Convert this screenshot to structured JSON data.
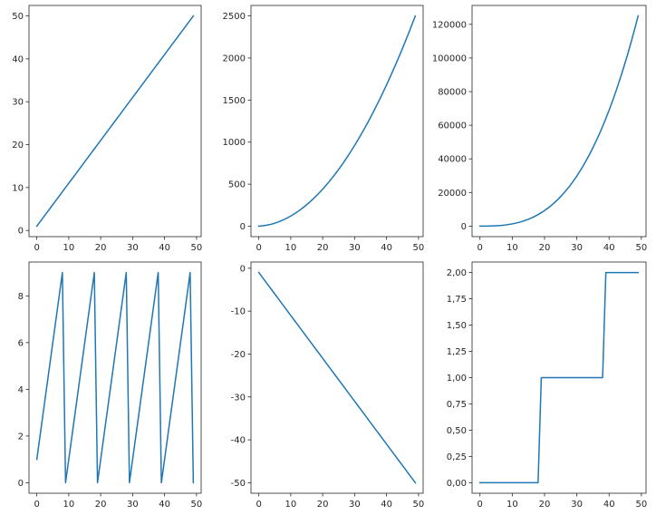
{
  "colors": {
    "series": "#1f77b4"
  },
  "chart_data": [
    {
      "type": "line",
      "x": [
        0,
        1,
        2,
        3,
        4,
        5,
        6,
        7,
        8,
        9,
        10,
        11,
        12,
        13,
        14,
        15,
        16,
        17,
        18,
        19,
        20,
        21,
        22,
        23,
        24,
        25,
        26,
        27,
        28,
        29,
        30,
        31,
        32,
        33,
        34,
        35,
        36,
        37,
        38,
        39,
        40,
        41,
        42,
        43,
        44,
        45,
        46,
        47,
        48,
        49
      ],
      "y": [
        1,
        2,
        3,
        4,
        5,
        6,
        7,
        8,
        9,
        10,
        11,
        12,
        13,
        14,
        15,
        16,
        17,
        18,
        19,
        20,
        21,
        22,
        23,
        24,
        25,
        26,
        27,
        28,
        29,
        30,
        31,
        32,
        33,
        34,
        35,
        36,
        37,
        38,
        39,
        40,
        41,
        42,
        43,
        44,
        45,
        46,
        47,
        48,
        49,
        50
      ],
      "xlim": [
        -2.45,
        51.45
      ],
      "ylim": [
        -1.45,
        52.45
      ],
      "xticks": [
        0,
        10,
        20,
        30,
        40,
        50
      ],
      "xtick_labels": [
        "0",
        "10",
        "20",
        "30",
        "40",
        "50"
      ],
      "yticks": [
        0,
        10,
        20,
        30,
        40,
        50
      ],
      "ytick_labels": [
        "0",
        "10",
        "20",
        "30",
        "40",
        "50"
      ],
      "grid": false
    },
    {
      "type": "line",
      "x": [
        0,
        1,
        2,
        3,
        4,
        5,
        6,
        7,
        8,
        9,
        10,
        11,
        12,
        13,
        14,
        15,
        16,
        17,
        18,
        19,
        20,
        21,
        22,
        23,
        24,
        25,
        26,
        27,
        28,
        29,
        30,
        31,
        32,
        33,
        34,
        35,
        36,
        37,
        38,
        39,
        40,
        41,
        42,
        43,
        44,
        45,
        46,
        47,
        48,
        49
      ],
      "y": [
        1,
        4,
        9,
        16,
        25,
        36,
        49,
        64,
        81,
        100,
        121,
        144,
        169,
        196,
        225,
        256,
        289,
        324,
        361,
        400,
        441,
        484,
        529,
        576,
        625,
        676,
        729,
        784,
        841,
        900,
        961,
        1024,
        1089,
        1156,
        1225,
        1296,
        1369,
        1444,
        1521,
        1600,
        1681,
        1764,
        1849,
        1936,
        2025,
        2116,
        2209,
        2304,
        2401,
        2500
      ],
      "xlim": [
        -2.45,
        51.45
      ],
      "ylim": [
        -123.95,
        2624.95
      ],
      "xticks": [
        0,
        10,
        20,
        30,
        40,
        50
      ],
      "xtick_labels": [
        "0",
        "10",
        "20",
        "30",
        "40",
        "50"
      ],
      "yticks": [
        0,
        500,
        1000,
        1500,
        2000,
        2500
      ],
      "ytick_labels": [
        "0",
        "500",
        "1000",
        "1500",
        "2000",
        "2500"
      ],
      "grid": false
    },
    {
      "type": "line",
      "x": [
        0,
        1,
        2,
        3,
        4,
        5,
        6,
        7,
        8,
        9,
        10,
        11,
        12,
        13,
        14,
        15,
        16,
        17,
        18,
        19,
        20,
        21,
        22,
        23,
        24,
        25,
        26,
        27,
        28,
        29,
        30,
        31,
        32,
        33,
        34,
        35,
        36,
        37,
        38,
        39,
        40,
        41,
        42,
        43,
        44,
        45,
        46,
        47,
        48,
        49
      ],
      "y": [
        1,
        8,
        27,
        64,
        125,
        216,
        343,
        512,
        729,
        1000,
        1331,
        1728,
        2197,
        2744,
        3375,
        4096,
        4913,
        5832,
        6859,
        8000,
        9261,
        10648,
        12167,
        13824,
        15625,
        17576,
        19683,
        21952,
        24389,
        27000,
        29791,
        32768,
        35937,
        39304,
        42875,
        46656,
        50653,
        54872,
        59319,
        64000,
        68921,
        74088,
        79507,
        85184,
        91125,
        97336,
        103823,
        110592,
        117649,
        125000
      ],
      "xlim": [
        -2.45,
        51.45
      ],
      "ylim": [
        -6249.95,
        131250.95
      ],
      "xticks": [
        0,
        10,
        20,
        30,
        40,
        50
      ],
      "xtick_labels": [
        "0",
        "10",
        "20",
        "30",
        "40",
        "50"
      ],
      "yticks": [
        0,
        20000,
        40000,
        60000,
        80000,
        100000,
        120000
      ],
      "ytick_labels": [
        "0",
        "20000",
        "40000",
        "60000",
        "80000",
        "100000",
        "120000"
      ],
      "grid": false
    },
    {
      "type": "line",
      "x": [
        0,
        1,
        2,
        3,
        4,
        5,
        6,
        7,
        8,
        9,
        10,
        11,
        12,
        13,
        14,
        15,
        16,
        17,
        18,
        19,
        20,
        21,
        22,
        23,
        24,
        25,
        26,
        27,
        28,
        29,
        30,
        31,
        32,
        33,
        34,
        35,
        36,
        37,
        38,
        39,
        40,
        41,
        42,
        43,
        44,
        45,
        46,
        47,
        48,
        49
      ],
      "y": [
        1,
        2,
        3,
        4,
        5,
        6,
        7,
        8,
        9,
        0,
        1,
        2,
        3,
        4,
        5,
        6,
        7,
        8,
        9,
        0,
        1,
        2,
        3,
        4,
        5,
        6,
        7,
        8,
        9,
        0,
        1,
        2,
        3,
        4,
        5,
        6,
        7,
        8,
        9,
        0,
        1,
        2,
        3,
        4,
        5,
        6,
        7,
        8,
        9,
        0
      ],
      "xlim": [
        -2.45,
        51.45
      ],
      "ylim": [
        -0.45,
        9.45
      ],
      "xticks": [
        0,
        10,
        20,
        30,
        40,
        50
      ],
      "xtick_labels": [
        "0",
        "10",
        "20",
        "30",
        "40",
        "50"
      ],
      "yticks": [
        0,
        2,
        4,
        6,
        8
      ],
      "ytick_labels": [
        "0",
        "2",
        "4",
        "6",
        "8"
      ],
      "grid": false
    },
    {
      "type": "line",
      "x": [
        0,
        1,
        2,
        3,
        4,
        5,
        6,
        7,
        8,
        9,
        10,
        11,
        12,
        13,
        14,
        15,
        16,
        17,
        18,
        19,
        20,
        21,
        22,
        23,
        24,
        25,
        26,
        27,
        28,
        29,
        30,
        31,
        32,
        33,
        34,
        35,
        36,
        37,
        38,
        39,
        40,
        41,
        42,
        43,
        44,
        45,
        46,
        47,
        48,
        49
      ],
      "y": [
        -1,
        -2,
        -3,
        -4,
        -5,
        -6,
        -7,
        -8,
        -9,
        -10,
        -11,
        -12,
        -13,
        -14,
        -15,
        -16,
        -17,
        -18,
        -19,
        -20,
        -21,
        -22,
        -23,
        -24,
        -25,
        -26,
        -27,
        -28,
        -29,
        -30,
        -31,
        -32,
        -33,
        -34,
        -35,
        -36,
        -37,
        -38,
        -39,
        -40,
        -41,
        -42,
        -43,
        -44,
        -45,
        -46,
        -47,
        -48,
        -49,
        -50
      ],
      "xlim": [
        -2.45,
        51.45
      ],
      "ylim": [
        -52.45,
        1.45
      ],
      "xticks": [
        0,
        10,
        20,
        30,
        40,
        50
      ],
      "xtick_labels": [
        "0",
        "10",
        "20",
        "30",
        "40",
        "50"
      ],
      "yticks": [
        0,
        -10,
        -20,
        -30,
        -40,
        -50
      ],
      "ytick_labels": [
        "0",
        "-10",
        "-20",
        "-30",
        "-40",
        "-50"
      ],
      "grid": false
    },
    {
      "type": "line",
      "x": [
        0,
        1,
        2,
        3,
        4,
        5,
        6,
        7,
        8,
        9,
        10,
        11,
        12,
        13,
        14,
        15,
        16,
        17,
        18,
        19,
        20,
        21,
        22,
        23,
        24,
        25,
        26,
        27,
        28,
        29,
        30,
        31,
        32,
        33,
        34,
        35,
        36,
        37,
        38,
        39,
        40,
        41,
        42,
        43,
        44,
        45,
        46,
        47,
        48,
        49
      ],
      "y": [
        0,
        0,
        0,
        0,
        0,
        0,
        0,
        0,
        0,
        0,
        0,
        0,
        0,
        0,
        0,
        0,
        0,
        0,
        0,
        1,
        1,
        1,
        1,
        1,
        1,
        1,
        1,
        1,
        1,
        1,
        1,
        1,
        1,
        1,
        1,
        1,
        1,
        1,
        1,
        2,
        2,
        2,
        2,
        2,
        2,
        2,
        2,
        2,
        2,
        2
      ],
      "xlim": [
        -2.45,
        51.45
      ],
      "ylim": [
        -0.1,
        2.1
      ],
      "xticks": [
        0,
        10,
        20,
        30,
        40,
        50
      ],
      "xtick_labels": [
        "0",
        "10",
        "20",
        "30",
        "40",
        "50"
      ],
      "yticks": [
        0,
        0.25,
        0.5,
        0.75,
        1,
        1.25,
        1.5,
        1.75,
        2
      ],
      "ytick_labels": [
        "0,00",
        "0,25",
        "0,50",
        "0,75",
        "1,00",
        "1,25",
        "1,50",
        "1,75",
        "2,00"
      ],
      "grid": false
    }
  ]
}
